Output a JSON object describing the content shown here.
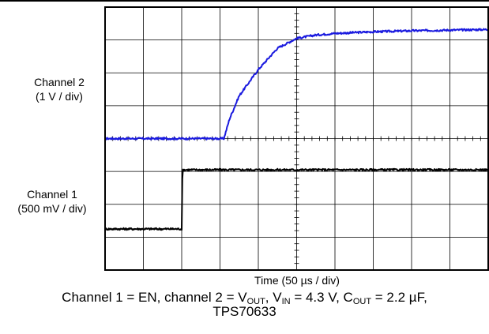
{
  "channel2_label": {
    "line1": "Channel 2",
    "line2": "(1 V / div)"
  },
  "channel1_label": {
    "line1": "Channel 1",
    "line2": "(500 mV / div)"
  },
  "xlabel": {
    "pre": "Time (50 ",
    "mu": "µ",
    "post": "s / div)"
  },
  "caption": {
    "p1": "Channel 1 = EN, channel 2 = V",
    "s1": "OUT",
    "p2": ", V",
    "s2": "IN",
    "p3": " = 4.3 V, C",
    "s3": "OUT",
    "p4": " = 2.2 µF,",
    "line2": "TPS70633"
  },
  "colors": {
    "channel1": "#000000",
    "channel2": "#1a1adf",
    "grid": "#000000"
  },
  "chart_data": {
    "type": "line",
    "title": "",
    "xlabel": "Time (50 µs / div)",
    "ylabel": "",
    "x_unit": "div",
    "y_unit": "div",
    "xlim": [
      0,
      10
    ],
    "ylim": [
      0,
      8
    ],
    "grid": true,
    "series": [
      {
        "name": "Channel 2",
        "color": "#1a1adf",
        "x": [
          0,
          3.1,
          3.2,
          3.25,
          3.5,
          4.0,
          4.5,
          5.0,
          5.5,
          6.0,
          7.0,
          8.0,
          9.0,
          10.0
        ],
        "y": [
          4.0,
          4.0,
          4.4,
          4.6,
          5.3,
          6.1,
          6.75,
          7.05,
          7.15,
          7.2,
          7.25,
          7.28,
          7.3,
          7.32
        ]
      },
      {
        "name": "Channel 1",
        "color": "#000000",
        "x": [
          0,
          2.0,
          2.02,
          10.0
        ],
        "y": [
          1.25,
          1.25,
          3.05,
          3.05
        ]
      }
    ]
  }
}
